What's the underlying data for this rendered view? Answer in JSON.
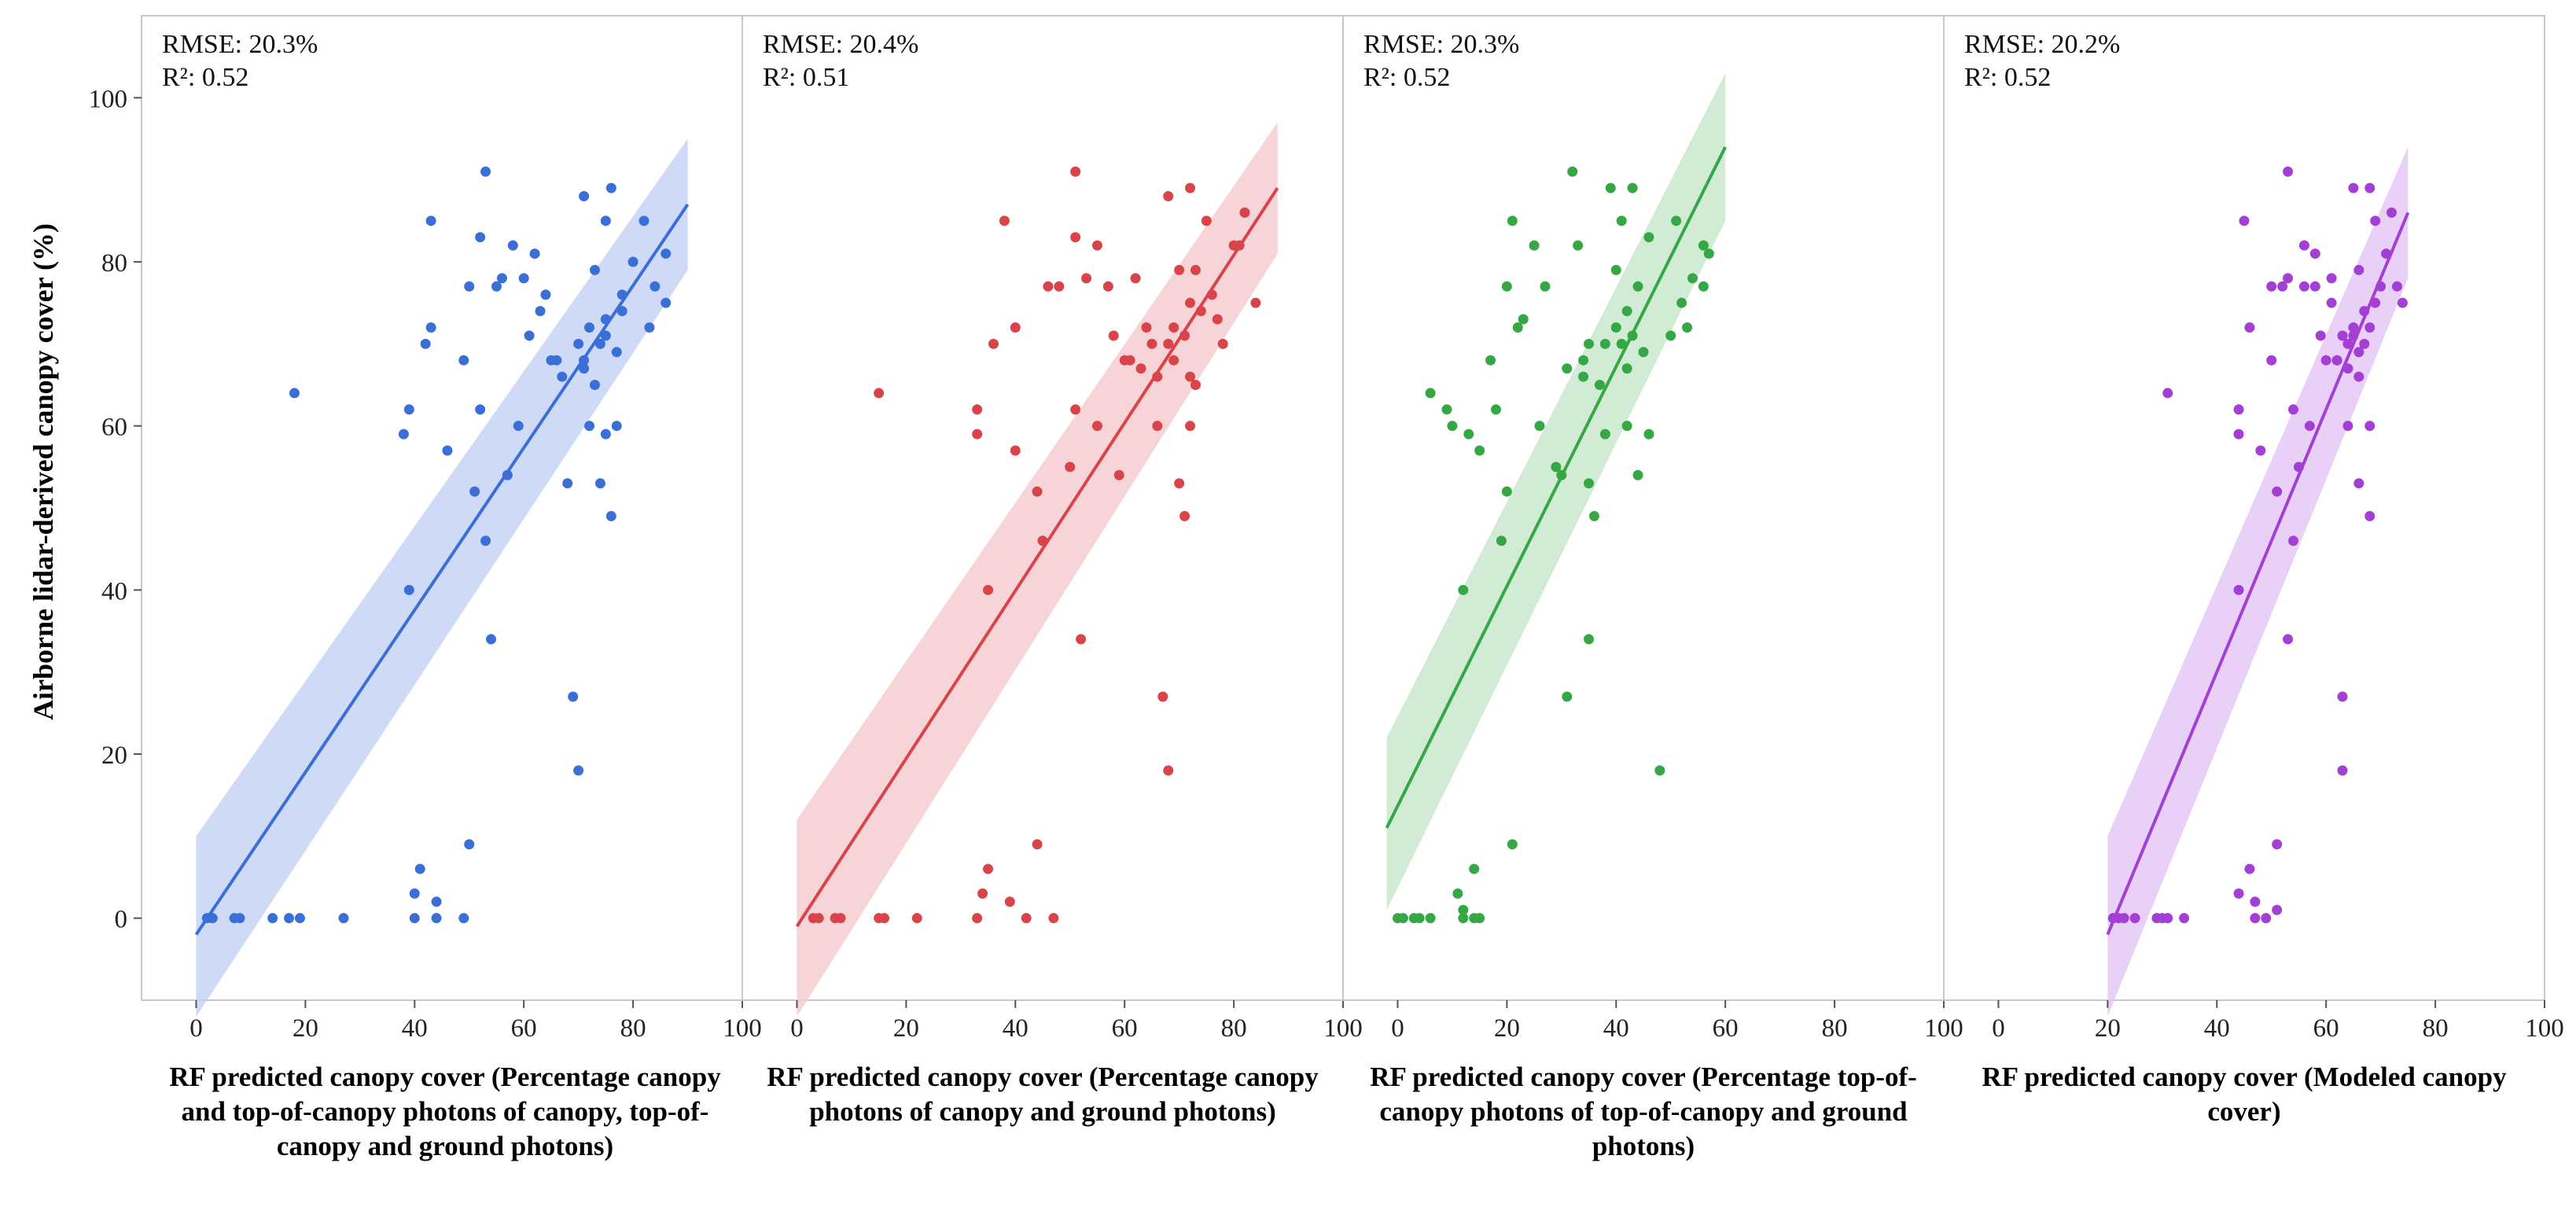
{
  "figure": {
    "y_axis_label": "Airborne lidar-derived canopy cover (%)",
    "y_ticks": [
      "0",
      "20",
      "40",
      "60",
      "80",
      "100"
    ],
    "x_ticks": [
      "0",
      "20",
      "40",
      "60",
      "80",
      "100"
    ]
  },
  "panels": [
    {
      "rmse": "RMSE: 20.3%",
      "r2": "R²: 0.52",
      "xlabel": "RF predicted canopy cover (Percentage canopy and top-of-canopy photons of canopy, top-of-canopy and ground photons)"
    },
    {
      "rmse": "RMSE: 20.4%",
      "r2": "R²: 0.51",
      "xlabel": "RF predicted canopy cover (Percentage canopy photons of canopy and ground photons)"
    },
    {
      "rmse": "RMSE: 20.3%",
      "r2": "R²: 0.52",
      "xlabel": "RF predicted canopy cover (Percentage top-of-canopy photons of top-of-canopy and ground photons)"
    },
    {
      "rmse": "RMSE: 20.2%",
      "r2": "R²: 0.52",
      "xlabel": "RF predicted canopy cover (Modeled canopy cover)"
    }
  ],
  "chart_data": [
    {
      "type": "scatter",
      "title": "",
      "xlabel": "RF predicted canopy cover (Percentage canopy and top-of-canopy photons of canopy, top-of-canopy and ground photons)",
      "ylabel": "Airborne lidar-derived canopy cover (%)",
      "xlim": [
        -10,
        100
      ],
      "ylim": [
        -10,
        110
      ],
      "color": "#3a6fd8",
      "band_color": "#c5d3f5",
      "fit": {
        "x0": 0,
        "x1": 90,
        "y0": -2,
        "y1": 87
      },
      "band": {
        "lo0": -12,
        "hi0": 10,
        "lo1": 79,
        "hi1": 95
      },
      "points": [
        [
          2,
          0
        ],
        [
          3,
          0
        ],
        [
          7,
          0
        ],
        [
          8,
          0
        ],
        [
          14,
          0
        ],
        [
          17,
          0
        ],
        [
          19,
          0
        ],
        [
          27,
          0
        ],
        [
          18,
          64
        ],
        [
          38,
          59
        ],
        [
          39,
          62
        ],
        [
          39,
          40
        ],
        [
          40,
          0
        ],
        [
          40,
          3
        ],
        [
          41,
          6
        ],
        [
          42,
          70
        ],
        [
          43,
          72
        ],
        [
          44,
          0
        ],
        [
          44,
          2
        ],
        [
          43,
          85
        ],
        [
          46,
          57
        ],
        [
          49,
          68
        ],
        [
          50,
          77
        ],
        [
          50,
          9
        ],
        [
          49,
          0
        ],
        [
          51,
          52
        ],
        [
          52,
          62
        ],
        [
          53,
          91
        ],
        [
          52,
          83
        ],
        [
          53,
          46
        ],
        [
          54,
          34
        ],
        [
          55,
          77
        ],
        [
          56,
          78
        ],
        [
          57,
          54
        ],
        [
          58,
          82
        ],
        [
          59,
          60
        ],
        [
          60,
          78
        ],
        [
          61,
          71
        ],
        [
          62,
          81
        ],
        [
          63,
          74
        ],
        [
          64,
          76
        ],
        [
          65,
          68
        ],
        [
          66,
          68
        ],
        [
          67,
          66
        ],
        [
          68,
          53
        ],
        [
          69,
          27
        ],
        [
          70,
          70
        ],
        [
          70,
          18
        ],
        [
          71,
          88
        ],
        [
          71,
          68
        ],
        [
          71,
          67
        ],
        [
          72,
          60
        ],
        [
          72,
          72
        ],
        [
          73,
          65
        ],
        [
          73,
          79
        ],
        [
          74,
          70
        ],
        [
          74,
          53
        ],
        [
          75,
          59
        ],
        [
          75,
          71
        ],
        [
          75,
          85
        ],
        [
          75,
          73
        ],
        [
          76,
          89
        ],
        [
          76,
          49
        ],
        [
          77,
          60
        ],
        [
          77,
          69
        ],
        [
          78,
          74
        ],
        [
          78,
          76
        ],
        [
          80,
          80
        ],
        [
          82,
          85
        ],
        [
          83,
          72
        ],
        [
          84,
          77
        ],
        [
          86,
          81
        ],
        [
          86,
          75
        ]
      ]
    },
    {
      "type": "scatter",
      "title": "",
      "xlabel": "RF predicted canopy cover (Percentage canopy photons of canopy and ground photons)",
      "ylabel": "Airborne lidar-derived canopy cover (%)",
      "xlim": [
        -10,
        100
      ],
      "ylim": [
        -10,
        110
      ],
      "color": "#d9434a",
      "band_color": "#f5cdd0",
      "fit": {
        "x0": 0,
        "x1": 88,
        "y0": -1,
        "y1": 89
      },
      "band": {
        "lo0": -12,
        "hi0": 12,
        "lo1": 81,
        "hi1": 97
      },
      "points": [
        [
          3,
          0
        ],
        [
          4,
          0
        ],
        [
          7,
          0
        ],
        [
          8,
          0
        ],
        [
          15,
          0
        ],
        [
          16,
          0
        ],
        [
          22,
          0
        ],
        [
          33,
          0
        ],
        [
          15,
          64
        ],
        [
          33,
          59
        ],
        [
          33,
          62
        ],
        [
          35,
          40
        ],
        [
          34,
          3
        ],
        [
          35,
          6
        ],
        [
          36,
          70
        ],
        [
          38,
          85
        ],
        [
          39,
          2
        ],
        [
          40,
          72
        ],
        [
          40,
          57
        ],
        [
          42,
          0
        ],
        [
          44,
          9
        ],
        [
          44,
          52
        ],
        [
          45,
          46
        ],
        [
          46,
          77
        ],
        [
          47,
          0
        ],
        [
          48,
          77
        ],
        [
          50,
          55
        ],
        [
          51,
          91
        ],
        [
          51,
          83
        ],
        [
          51,
          62
        ],
        [
          52,
          34
        ],
        [
          53,
          78
        ],
        [
          55,
          82
        ],
        [
          55,
          60
        ],
        [
          57,
          77
        ],
        [
          58,
          71
        ],
        [
          59,
          54
        ],
        [
          60,
          68
        ],
        [
          61,
          68
        ],
        [
          62,
          78
        ],
        [
          63,
          67
        ],
        [
          64,
          72
        ],
        [
          65,
          70
        ],
        [
          66,
          66
        ],
        [
          66,
          60
        ],
        [
          67,
          27
        ],
        [
          68,
          88
        ],
        [
          68,
          18
        ],
        [
          68,
          70
        ],
        [
          69,
          68
        ],
        [
          69,
          72
        ],
        [
          70,
          79
        ],
        [
          70,
          53
        ],
        [
          71,
          49
        ],
        [
          71,
          71
        ],
        [
          72,
          60
        ],
        [
          72,
          89
        ],
        [
          72,
          66
        ],
        [
          73,
          65
        ],
        [
          73,
          79
        ],
        [
          74,
          74
        ],
        [
          75,
          85
        ],
        [
          76,
          76
        ],
        [
          77,
          73
        ],
        [
          78,
          70
        ],
        [
          80,
          82
        ],
        [
          81,
          82
        ],
        [
          82,
          86
        ],
        [
          84,
          75
        ],
        [
          72,
          75
        ]
      ]
    },
    {
      "type": "scatter",
      "title": "",
      "xlabel": "RF predicted canopy cover (Percentage top-of-canopy photons of top-of-canopy and ground photons)",
      "ylabel": "Airborne lidar-derived canopy cover (%)",
      "xlim": [
        -10,
        100
      ],
      "ylim": [
        -10,
        110
      ],
      "color": "#35a845",
      "band_color": "#c9e8cc",
      "fit": {
        "x0": -2,
        "x1": 60,
        "y0": 11,
        "y1": 94
      },
      "band": {
        "lo0": 1,
        "hi0": 22,
        "lo1": 85,
        "hi1": 103
      },
      "points": [
        [
          0,
          0
        ],
        [
          1,
          0
        ],
        [
          3,
          0
        ],
        [
          4,
          0
        ],
        [
          6,
          0
        ],
        [
          11,
          3
        ],
        [
          12,
          0
        ],
        [
          12,
          1
        ],
        [
          14,
          6
        ],
        [
          15,
          0
        ],
        [
          14,
          0
        ],
        [
          6,
          64
        ],
        [
          9,
          62
        ],
        [
          10,
          60
        ],
        [
          12,
          40
        ],
        [
          13,
          59
        ],
        [
          15,
          57
        ],
        [
          17,
          68
        ],
        [
          18,
          62
        ],
        [
          19,
          46
        ],
        [
          20,
          52
        ],
        [
          21,
          9
        ],
        [
          20,
          77
        ],
        [
          21,
          85
        ],
        [
          22,
          72
        ],
        [
          23,
          73
        ],
        [
          25,
          82
        ],
        [
          26,
          60
        ],
        [
          27,
          77
        ],
        [
          29,
          55
        ],
        [
          30,
          54
        ],
        [
          31,
          27
        ],
        [
          31,
          67
        ],
        [
          32,
          91
        ],
        [
          33,
          82
        ],
        [
          34,
          66
        ],
        [
          34,
          68
        ],
        [
          35,
          70
        ],
        [
          35,
          53
        ],
        [
          35,
          34
        ],
        [
          36,
          49
        ],
        [
          37,
          65
        ],
        [
          38,
          59
        ],
        [
          38,
          70
        ],
        [
          39,
          89
        ],
        [
          40,
          79
        ],
        [
          40,
          72
        ],
        [
          41,
          70
        ],
        [
          41,
          85
        ],
        [
          42,
          60
        ],
        [
          42,
          67
        ],
        [
          42,
          74
        ],
        [
          43,
          89
        ],
        [
          43,
          71
        ],
        [
          44,
          54
        ],
        [
          44,
          77
        ],
        [
          45,
          69
        ],
        [
          46,
          83
        ],
        [
          46,
          59
        ],
        [
          48,
          18
        ],
        [
          50,
          71
        ],
        [
          51,
          85
        ],
        [
          52,
          75
        ],
        [
          53,
          72
        ],
        [
          54,
          78
        ],
        [
          56,
          82
        ],
        [
          57,
          81
        ],
        [
          56,
          77
        ]
      ]
    },
    {
      "type": "scatter",
      "title": "",
      "xlabel": "RF predicted canopy cover (Modeled canopy cover)",
      "ylabel": "Airborne lidar-derived canopy cover (%)",
      "xlim": [
        -10,
        100
      ],
      "ylim": [
        -10,
        110
      ],
      "color": "#a43fd6",
      "band_color": "#e5c8f5",
      "fit": {
        "x0": 20,
        "x1": 75,
        "y0": -2,
        "y1": 86
      },
      "band": {
        "lo0": -12,
        "hi0": 10,
        "lo1": 78,
        "hi1": 94
      },
      "points": [
        [
          21,
          0
        ],
        [
          22,
          0
        ],
        [
          23,
          0
        ],
        [
          25,
          0
        ],
        [
          29,
          0
        ],
        [
          30,
          0
        ],
        [
          31,
          0
        ],
        [
          34,
          0
        ],
        [
          31,
          64
        ],
        [
          44,
          59
        ],
        [
          44,
          62
        ],
        [
          44,
          40
        ],
        [
          45,
          85
        ],
        [
          44,
          3
        ],
        [
          46,
          6
        ],
        [
          46,
          72
        ],
        [
          47,
          0
        ],
        [
          47,
          2
        ],
        [
          48,
          57
        ],
        [
          49,
          0
        ],
        [
          50,
          68
        ],
        [
          50,
          77
        ],
        [
          51,
          9
        ],
        [
          51,
          52
        ],
        [
          51,
          1
        ],
        [
          52,
          77
        ],
        [
          53,
          91
        ],
        [
          53,
          78
        ],
        [
          53,
          34
        ],
        [
          54,
          46
        ],
        [
          54,
          62
        ],
        [
          55,
          55
        ],
        [
          56,
          82
        ],
        [
          56,
          77
        ],
        [
          57,
          60
        ],
        [
          58,
          81
        ],
        [
          58,
          77
        ],
        [
          59,
          71
        ],
        [
          60,
          68
        ],
        [
          61,
          78
        ],
        [
          61,
          75
        ],
        [
          62,
          68
        ],
        [
          62,
          68
        ],
        [
          63,
          27
        ],
        [
          63,
          18
        ],
        [
          63,
          71
        ],
        [
          64,
          70
        ],
        [
          64,
          60
        ],
        [
          64,
          67
        ],
        [
          65,
          72
        ],
        [
          65,
          71
        ],
        [
          65,
          89
        ],
        [
          66,
          69
        ],
        [
          66,
          66
        ],
        [
          66,
          53
        ],
        [
          66,
          79
        ],
        [
          67,
          74
        ],
        [
          67,
          70
        ],
        [
          68,
          72
        ],
        [
          68,
          60
        ],
        [
          68,
          49
        ],
        [
          68,
          89
        ],
        [
          69,
          85
        ],
        [
          69,
          75
        ],
        [
          70,
          77
        ],
        [
          71,
          81
        ],
        [
          72,
          86
        ],
        [
          73,
          77
        ],
        [
          74,
          75
        ]
      ]
    }
  ]
}
